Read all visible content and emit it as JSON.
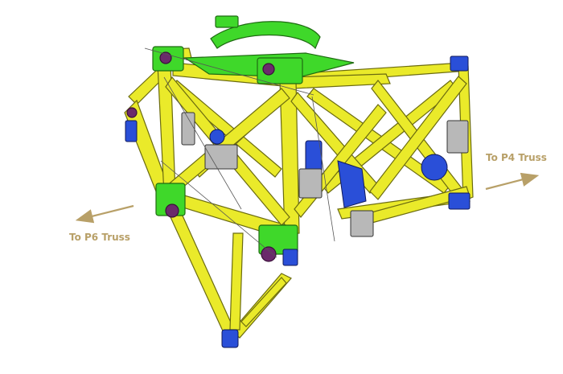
{
  "labels": {
    "p4": "To P4 Truss",
    "p6": "To P6 Truss"
  },
  "colors": {
    "label_text": "#b8a068",
    "arrow": "#b8a068",
    "truss_yellow": "#eaea2a",
    "truss_outline": "#6b6b10",
    "fitting_green": "#3fd82a",
    "actuator_blue": "#2a4fd8",
    "background": "#ffffff"
  }
}
